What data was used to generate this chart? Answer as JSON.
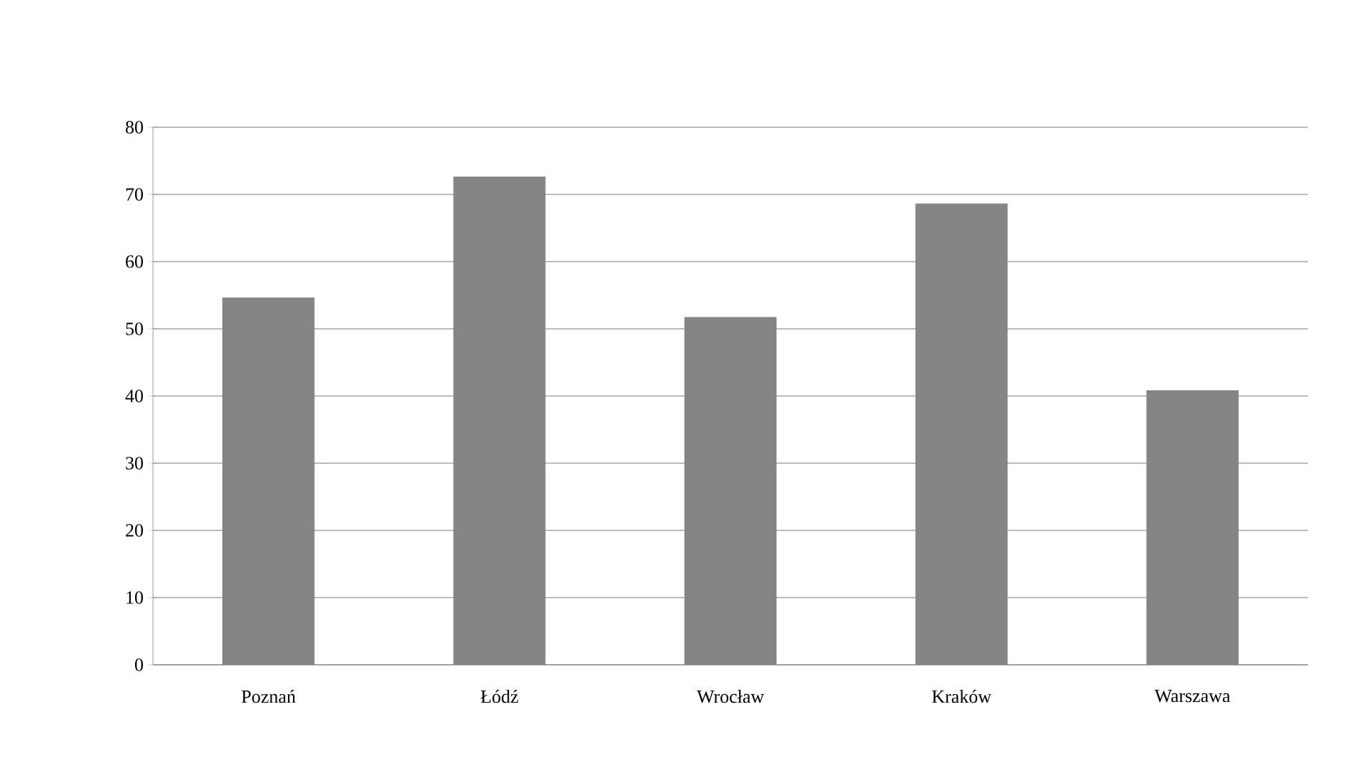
{
  "chart_data": {
    "type": "bar",
    "categories": [
      "Poznań",
      "Łódź",
      "Wrocław",
      "Kraków",
      "Warszawa"
    ],
    "values": [
      54.6,
      72.6,
      51.7,
      68.6,
      40.8
    ],
    "color": "#858585",
    "ylim": [
      0,
      80
    ],
    "yticks": [
      0,
      10,
      20,
      30,
      40,
      50,
      60,
      70,
      80
    ],
    "grid": "y",
    "legend": false
  }
}
